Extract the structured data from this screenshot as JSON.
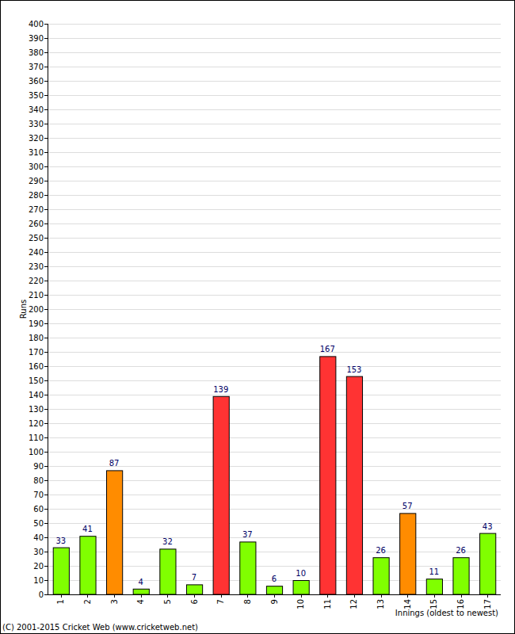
{
  "chart_data": {
    "type": "bar",
    "x_label": "Innings (oldest to newest)",
    "y_label": "Runs",
    "annotations": [
      "(C) 2001-2015 Cricket Web (www.cricketweb.net)"
    ],
    "categories": [
      "1",
      "2",
      "3",
      "4",
      "5",
      "6",
      "7",
      "8",
      "9",
      "10",
      "11",
      "12",
      "13",
      "14",
      "15",
      "16",
      "17"
    ],
    "values": [
      33,
      41,
      87,
      4,
      32,
      7,
      139,
      37,
      6,
      10,
      167,
      153,
      26,
      57,
      11,
      26,
      43
    ],
    "colors": [
      "#80ff00",
      "#80ff00",
      "#ff8c00",
      "#80ff00",
      "#80ff00",
      "#80ff00",
      "#ff3333",
      "#80ff00",
      "#80ff00",
      "#80ff00",
      "#ff3333",
      "#ff3333",
      "#80ff00",
      "#ff8c00",
      "#80ff00",
      "#80ff00",
      "#80ff00"
    ],
    "ylim": [
      0,
      400
    ],
    "yticks": [
      0,
      10,
      20,
      30,
      40,
      50,
      60,
      70,
      80,
      90,
      100,
      110,
      120,
      130,
      140,
      150,
      160,
      170,
      180,
      190,
      200,
      210,
      220,
      230,
      240,
      250,
      260,
      270,
      280,
      290,
      300,
      310,
      320,
      330,
      340,
      350,
      360,
      370,
      380,
      390,
      400
    ],
    "grid": true,
    "data_labels": true
  }
}
